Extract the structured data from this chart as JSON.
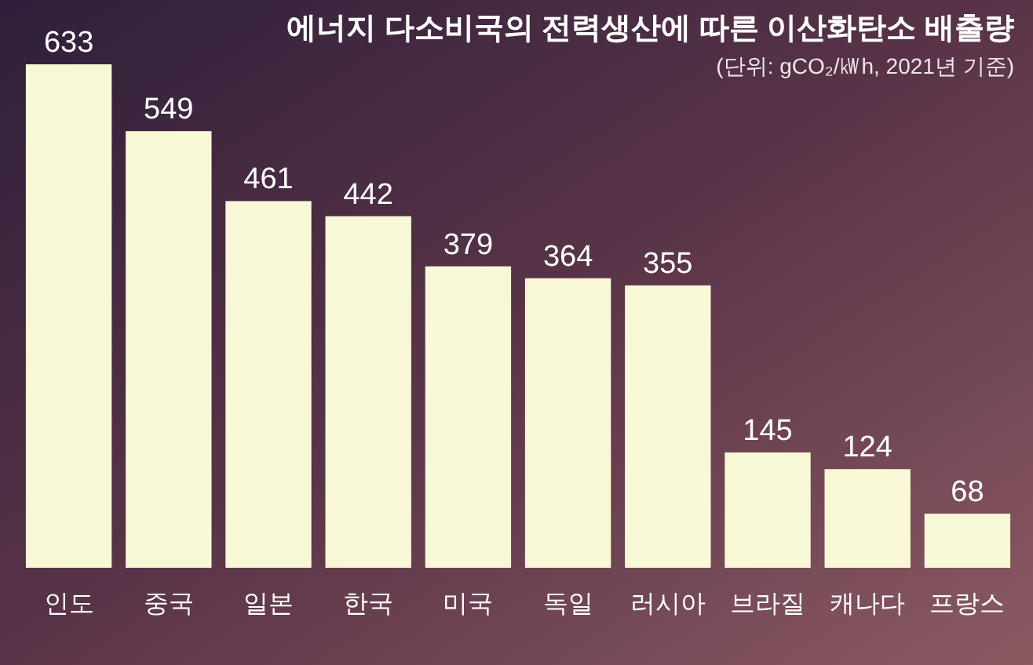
{
  "chart_data": {
    "type": "bar",
    "title": "에너지 다소비국의 전력생산에 따른 이산화탄소 배출량",
    "subtitle": "(단위: gCO₂/㎾h, 2021년 기준)",
    "categories": [
      "인도",
      "중국",
      "일본",
      "한국",
      "미국",
      "독일",
      "러시아",
      "브라질",
      "캐나다",
      "프랑스"
    ],
    "values": [
      633,
      549,
      461,
      442,
      379,
      364,
      355,
      145,
      124,
      68
    ],
    "color": "#f9f8d6",
    "data_labels": true
  }
}
